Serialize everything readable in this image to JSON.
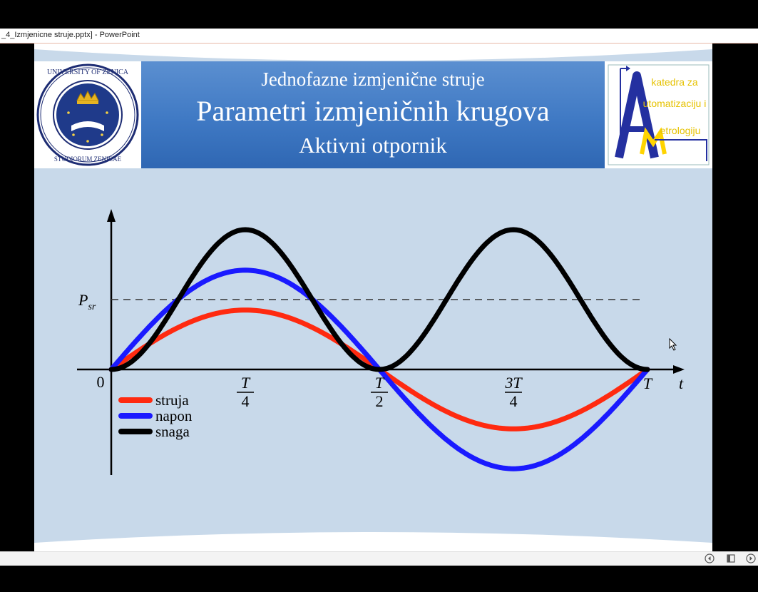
{
  "window": {
    "title": "_4_Izmjenicne struje.pptx] - PowerPoint"
  },
  "slide": {
    "subtitle_top": "Jednofazne izmjenične struje",
    "title": "Parametri izmjeničnih krugova",
    "subtitle_bottom": "Aktivni otpornik",
    "logo_right": {
      "line1": "katedra za",
      "line2": "utomatizaciju i",
      "line3": "etrologiju"
    }
  },
  "chart_data": {
    "type": "line",
    "x_ticks": [
      "0",
      "T/4",
      "T/2",
      "3T/4",
      "T"
    ],
    "x_label": "t",
    "reference_line": {
      "label": "Psr",
      "value": 1.0
    },
    "series": [
      {
        "name": "struja",
        "color": "#ff2a10",
        "amplitude": 0.85,
        "kind": "sin"
      },
      {
        "name": "napon",
        "color": "#1a1aff",
        "amplitude": 1.42,
        "kind": "sin"
      },
      {
        "name": "snaga",
        "color": "#000000",
        "amplitude": 2.0,
        "kind": "sin2"
      }
    ],
    "legend": [
      "struja",
      "napon",
      "snaga"
    ],
    "ylim": [
      -1.55,
      2.3
    ]
  },
  "statusbar": {
    "icons": [
      "prev-icon",
      "notes-icon",
      "next-icon"
    ]
  }
}
